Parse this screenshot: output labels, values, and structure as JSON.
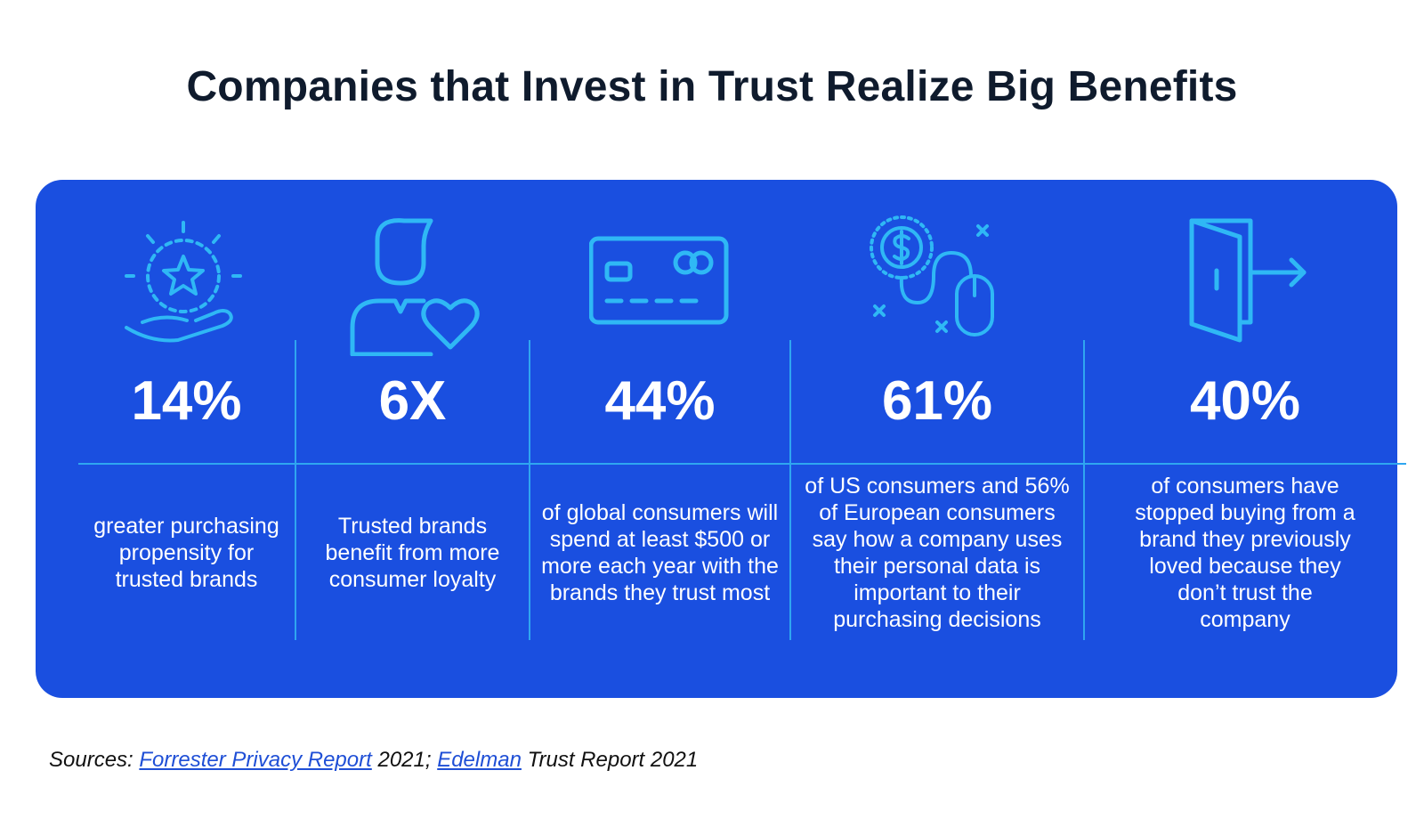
{
  "title": "Companies that Invest in Trust Realize Big Benefits",
  "stats": [
    {
      "value": "14%",
      "description": "greater purchasing\npropensity for\ntrusted brands",
      "icon": "hand-star-icon"
    },
    {
      "value": "6X",
      "description": "Trusted brands\nbenefit from more\nconsumer loyalty",
      "icon": "person-heart-icon"
    },
    {
      "value": "44%",
      "description": "of global consumers will\nspend at least $500 or\nmore each year with the\nbrands they trust most",
      "icon": "credit-card-icon"
    },
    {
      "value": "61%",
      "description": "of US consumers and 56%\nof European consumers\nsay how a company uses\ntheir personal data is\nimportant to their\npurchasing decisions",
      "icon": "dollar-mouse-icon"
    },
    {
      "value": "40%",
      "description": "of consumers have\nstopped buying from a\nbrand they previously\nloved because they\ndon’t trust the\ncompany",
      "icon": "door-exit-icon"
    }
  ],
  "sources": {
    "prefix": "Sources: ",
    "link1": "Forrester Privacy Report",
    "middle": " 2021; ",
    "link2": "Edelman",
    "suffix": " Trust Report 2021"
  },
  "colors": {
    "panel": "#1a4fe0",
    "icon_stroke": "#2fb8f5",
    "divider": "#2fa6f0"
  }
}
